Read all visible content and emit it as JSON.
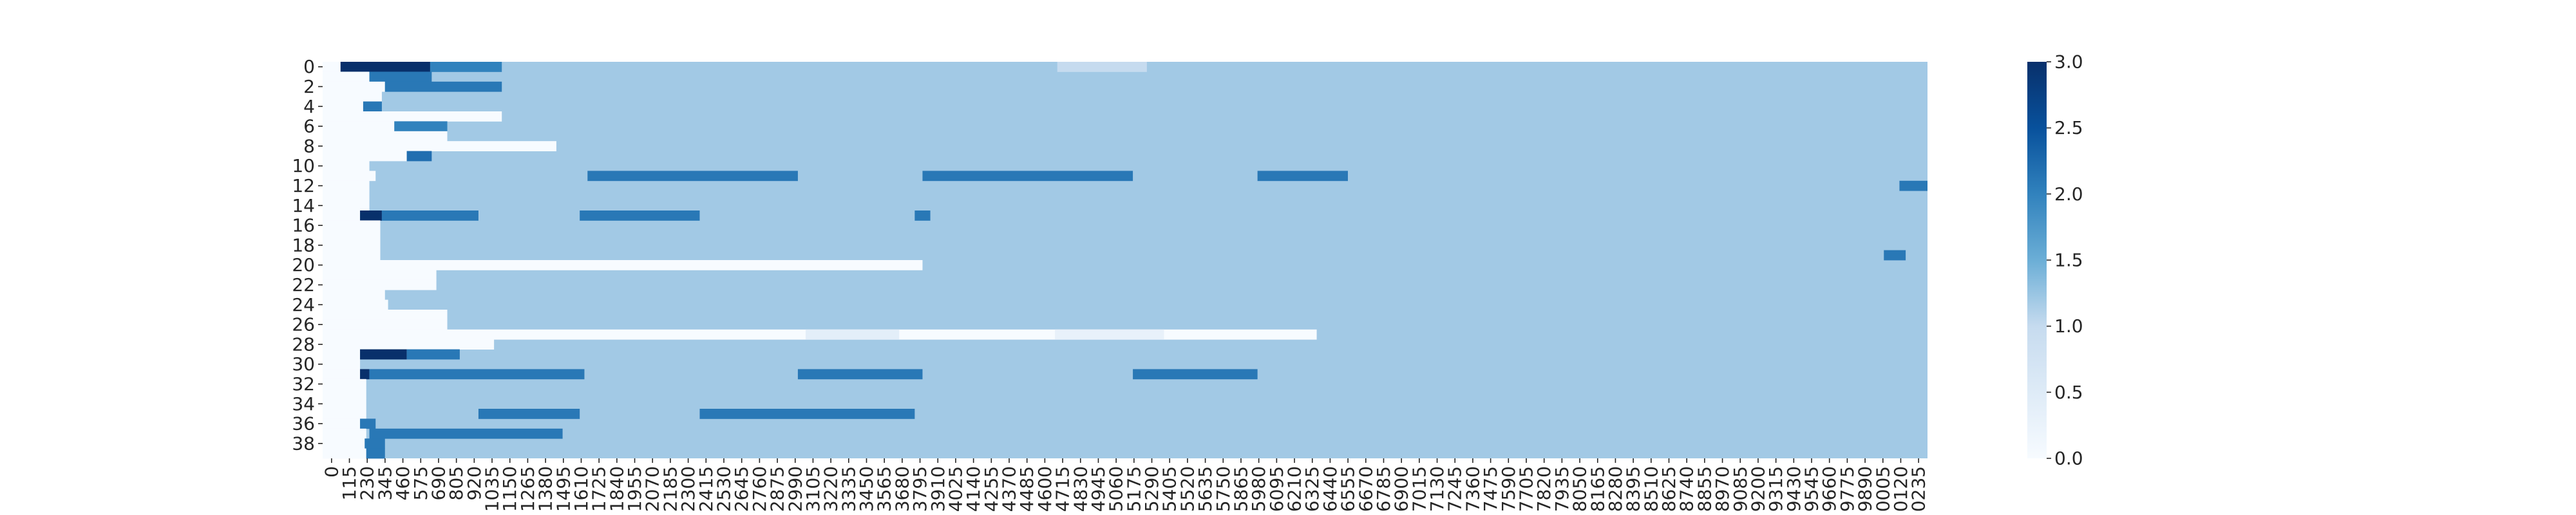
{
  "chart_data": {
    "type": "heatmap",
    "colormap": "Blues",
    "vmin": 0.0,
    "vmax": 3.0,
    "y_tick_labels": [
      "0",
      "2",
      "4",
      "6",
      "8",
      "10",
      "12",
      "14",
      "16",
      "18",
      "20",
      "22",
      "24",
      "26",
      "28",
      "30",
      "32",
      "34",
      "36",
      "38"
    ],
    "x_tick_labels": [
      "0",
      "115",
      "230",
      "345",
      "460",
      "575",
      "690",
      "805",
      "920",
      "1035",
      "1150",
      "1265",
      "1380",
      "1495",
      "1610",
      "1725",
      "1840",
      "1955",
      "2070",
      "2185",
      "2300",
      "2415",
      "2530",
      "2645",
      "2760",
      "2875",
      "2990",
      "3105",
      "3220",
      "3335",
      "3450",
      "3565",
      "3680",
      "3795",
      "3910",
      "4025",
      "4140",
      "4255",
      "4370",
      "4485",
      "4600",
      "4715",
      "4830",
      "4945",
      "5060",
      "5175",
      "5290",
      "5405",
      "5520",
      "5635",
      "5750",
      "5865",
      "5980",
      "6095",
      "6210",
      "6325",
      "6440",
      "6555",
      "6670",
      "6785",
      "6900",
      "7015",
      "7130",
      "7245",
      "7360",
      "7475",
      "7590",
      "7705",
      "7820",
      "7935",
      "8050",
      "8165",
      "8280",
      "8395",
      "8510",
      "8625",
      "8740",
      "8855",
      "8970",
      "9085",
      "9200",
      "9315",
      "9430",
      "9545",
      "9660",
      "9775",
      "9890",
      "0005",
      "0120",
      "0235"
    ],
    "colorbar_ticks": [
      "0.0",
      "0.5",
      "1.0",
      "1.5",
      "2.0",
      "2.5",
      "3.0"
    ],
    "background_value": 1.2,
    "rows": 40,
    "columns": 10300,
    "segments": [
      [
        0,
        0,
        115,
        0.0
      ],
      [
        0,
        115,
        690,
        3.0
      ],
      [
        0,
        690,
        1150,
        2.0
      ],
      [
        0,
        4715,
        5290,
        1.0
      ],
      [
        1,
        0,
        300,
        0.0
      ],
      [
        1,
        300,
        700,
        2.1
      ],
      [
        2,
        0,
        400,
        0.0
      ],
      [
        2,
        400,
        1150,
        2.1
      ],
      [
        3,
        0,
        380,
        0.0
      ],
      [
        4,
        0,
        300,
        0.0
      ],
      [
        4,
        260,
        380,
        2.1
      ],
      [
        5,
        0,
        1150,
        0.0
      ],
      [
        6,
        0,
        460,
        0.0
      ],
      [
        6,
        460,
        800,
        2.0
      ],
      [
        7,
        0,
        800,
        0.0
      ],
      [
        8,
        0,
        1500,
        0.0
      ],
      [
        9,
        0,
        540,
        0.0
      ],
      [
        9,
        540,
        700,
        2.2
      ],
      [
        10,
        0,
        300,
        0.0
      ],
      [
        11,
        0,
        340,
        0.0
      ],
      [
        11,
        1700,
        3050,
        2.1
      ],
      [
        11,
        3850,
        5200,
        2.1
      ],
      [
        11,
        6000,
        6580,
        2.1
      ],
      [
        12,
        0,
        300,
        0.0
      ],
      [
        12,
        10120,
        10300,
        2.1
      ],
      [
        13,
        0,
        300,
        0.0
      ],
      [
        14,
        0,
        300,
        0.0
      ],
      [
        15,
        0,
        240,
        0.0
      ],
      [
        15,
        240,
        380,
        3.0
      ],
      [
        15,
        380,
        1000,
        2.1
      ],
      [
        15,
        1650,
        2420,
        2.1
      ],
      [
        15,
        3800,
        3900,
        2.1
      ],
      [
        16,
        0,
        370,
        0.0
      ],
      [
        17,
        0,
        370,
        0.0
      ],
      [
        18,
        0,
        370,
        0.0
      ],
      [
        19,
        0,
        370,
        0.0
      ],
      [
        19,
        10020,
        10160,
        2.1
      ],
      [
        20,
        0,
        3850,
        0.0
      ],
      [
        21,
        0,
        730,
        0.0
      ],
      [
        22,
        0,
        730,
        0.0
      ],
      [
        23,
        0,
        400,
        0.0
      ],
      [
        24,
        0,
        420,
        0.0
      ],
      [
        25,
        0,
        800,
        0.0
      ],
      [
        26,
        0,
        800,
        0.0
      ],
      [
        27,
        0,
        6380,
        0.0
      ],
      [
        27,
        3100,
        3700,
        0.4
      ],
      [
        27,
        4700,
        5400,
        0.3
      ],
      [
        28,
        0,
        1100,
        0.0
      ],
      [
        29,
        0,
        240,
        0.0
      ],
      [
        29,
        240,
        540,
        3.0
      ],
      [
        29,
        540,
        880,
        2.1
      ],
      [
        30,
        0,
        240,
        0.0
      ],
      [
        31,
        0,
        240,
        0.0
      ],
      [
        31,
        240,
        300,
        3.0
      ],
      [
        31,
        300,
        1680,
        2.1
      ],
      [
        31,
        3050,
        3850,
        2.1
      ],
      [
        31,
        5200,
        6000,
        2.1
      ],
      [
        32,
        0,
        280,
        0.0
      ],
      [
        33,
        0,
        280,
        0.0
      ],
      [
        34,
        0,
        280,
        0.0
      ],
      [
        35,
        0,
        280,
        0.0
      ],
      [
        35,
        1000,
        1650,
        2.1
      ],
      [
        35,
        2420,
        3800,
        2.1
      ],
      [
        36,
        0,
        240,
        0.0
      ],
      [
        36,
        240,
        340,
        2.1
      ],
      [
        37,
        0,
        280,
        0.0
      ],
      [
        37,
        300,
        1540,
        2.1
      ],
      [
        38,
        0,
        270,
        0.0
      ],
      [
        38,
        270,
        400,
        2.1
      ],
      [
        39,
        0,
        280,
        0.0
      ],
      [
        39,
        280,
        400,
        2.1
      ]
    ]
  }
}
